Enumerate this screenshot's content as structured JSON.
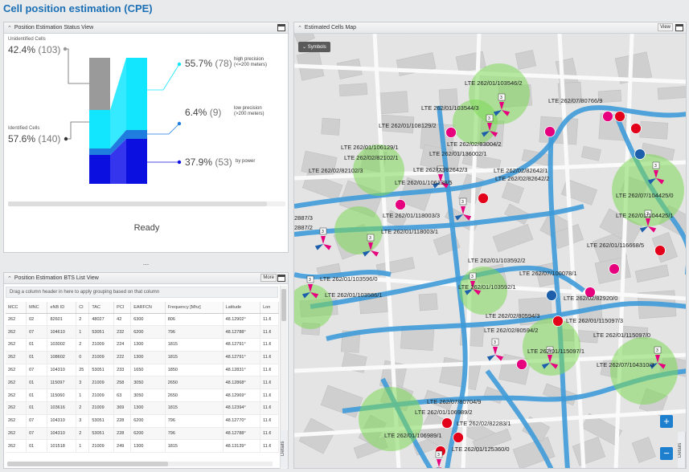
{
  "app": {
    "title": "Cell position estimation (CPE)"
  },
  "status_panel": {
    "title": "Position Estimation Status View",
    "unidentified": {
      "label": "Unidentified Cells",
      "percent": "42.4%",
      "count": "(103)"
    },
    "identified": {
      "label": "Identified Cells",
      "percent": "57.6%",
      "count": "(140)"
    },
    "high": {
      "percent": "55.7%",
      "count": "(78)",
      "desc1": "high precision",
      "desc2": "(<=200 meters)"
    },
    "low": {
      "percent": "6.4%",
      "count": "(9)",
      "desc1": "low precision",
      "desc2": "(>200 meters)"
    },
    "power": {
      "percent": "37.9%",
      "count": "(53)",
      "desc": "by power"
    },
    "ready": "Ready",
    "splitter": "..."
  },
  "table_panel": {
    "title": "Position Estimation BTS List View",
    "more": "More",
    "group_hint": "Drag a column header in here to apply grouping based on that column",
    "details": "Details",
    "columns": [
      "MCC",
      "MNC",
      "eNB ID",
      "CI",
      "TAC",
      "PCI",
      "EARFCN",
      "Frequency [Mhz]",
      "Latitude",
      "Lon"
    ],
    "rows": [
      [
        "262",
        "02",
        "82601",
        "2",
        "48027",
        "42",
        "6300",
        "806",
        "48.12902°",
        "11.¢"
      ],
      [
        "262",
        "07",
        "104610",
        "1",
        "53051",
        "232",
        "6200",
        "796",
        "48.12788°",
        "11.¢"
      ],
      [
        "262",
        "01",
        "103002",
        "2",
        "21009",
        "224",
        "1300",
        "1815",
        "48.12791°",
        "11.¢"
      ],
      [
        "262",
        "01",
        "108602",
        "0",
        "21009",
        "222",
        "1300",
        "1815",
        "48.12791°",
        "11.¢"
      ],
      [
        "262",
        "07",
        "104310",
        "25",
        "53051",
        "233",
        "1650",
        "1850",
        "48.12831°",
        "11.¢"
      ],
      [
        "262",
        "01",
        "115097",
        "3",
        "21009",
        "258",
        "3050",
        "2650",
        "48.12868°",
        "11.¢"
      ],
      [
        "262",
        "01",
        "115060",
        "1",
        "21009",
        "63",
        "3050",
        "2650",
        "48.12969°",
        "11.¢"
      ],
      [
        "262",
        "01",
        "103616",
        "2",
        "21009",
        "369",
        "1300",
        "1815",
        "48.12394°",
        "11.¢"
      ],
      [
        "262",
        "07",
        "104310",
        "3",
        "53051",
        "228",
        "6200",
        "796",
        "48.12770°",
        "11.¢"
      ],
      [
        "262",
        "07",
        "104310",
        "2",
        "53051",
        "228",
        "6200",
        "796",
        "48.12788°",
        "11.¢"
      ],
      [
        "262",
        "01",
        "101518",
        "1",
        "21009",
        "249",
        "1300",
        "1815",
        "48.13139°",
        "11.¢"
      ]
    ]
  },
  "map_panel": {
    "title": "Estimated Cells Map",
    "view": "View",
    "symbols": "Symbols",
    "zoom_in": "+",
    "zoom_out": "−",
    "details": "Details",
    "sector_label": "3",
    "cells": [
      "LTE 262/01/103546/2",
      "LTE 262/01/103544/3",
      "LTE 262/01/108129/2",
      "LTE 262/07/80766/9",
      "LTE 262/01/106129/1",
      "LTE 262/02/83004/2",
      "LTE 262/02/82102/1",
      "LTE 262/01/136002/1",
      "LTE 262/02/82102/3",
      "LTE 262/02/82642/3",
      "LTE 262/02/82642/1",
      "LTE 262/01/106138/5",
      "LTE 262/02/82642/2",
      "LTE 262/07/104425/0",
      "LTE 262/01/104425/1",
      "2887/3",
      "2887/2",
      "LTE 262/01/118003/3",
      "LTE 262/01/118003/1",
      "LTE 262/01/116668/5",
      "LTE 262/01/103592/2",
      "LTE 262/01/103592/1",
      "LTE 262/07/100078/1",
      "LTE 262/01/103596/0",
      "LTE 262/01/103586/1",
      "LTE 262/02/82920/0",
      "LTE 262/02/80594/3",
      "LTE 262/01/115097/3",
      "LTE 262/02/80594/2",
      "LTE 262/01/115097/0",
      "LTE 262/01/115097/1",
      "LTE 262/07/104310/3",
      "LTE 262/07/80704/9",
      "LTE 262/01/106989/2",
      "LTE 262/02/82283/1",
      "LTE 262/01/106989/1",
      "LTE 262/01/125360/0"
    ]
  },
  "colors": {
    "accent": "#1a6fb5",
    "road": "#3e9ad8",
    "cell_zone": "#7ed957",
    "cell_marker": "#e6007e",
    "cell_red": "#e3001b",
    "cell_blue": "#1d5faa"
  }
}
